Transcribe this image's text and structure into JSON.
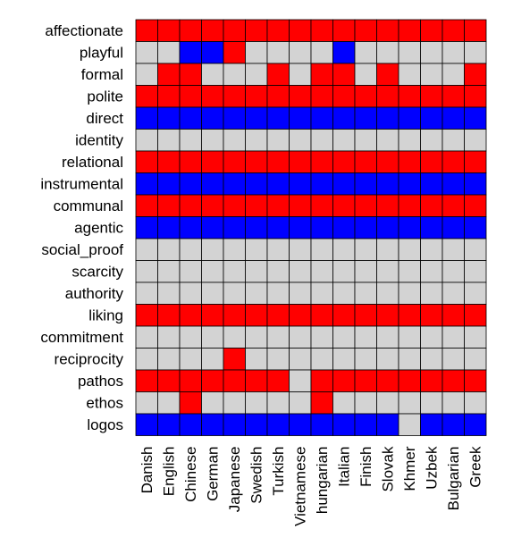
{
  "chart_data": {
    "type": "heatmap",
    "rows": [
      "affectionate",
      "playful",
      "formal",
      "polite",
      "direct",
      "identity",
      "relational",
      "instrumental",
      "communal",
      "agentic",
      "social_proof",
      "scarcity",
      "authority",
      "liking",
      "commitment",
      "reciprocity",
      "pathos",
      "ethos",
      "logos"
    ],
    "columns": [
      "Danish",
      "English",
      "Chinese",
      "German",
      "Japanese",
      "Swedish",
      "Turkish",
      "Vietnamese",
      "hungarian",
      "Italian",
      "Finish",
      "Slovak",
      "Khmer",
      "Uzbek",
      "Bulgarian",
      "Greek"
    ],
    "values": [
      [
        "R",
        "R",
        "R",
        "R",
        "R",
        "R",
        "R",
        "R",
        "R",
        "R",
        "R",
        "R",
        "R",
        "R",
        "R",
        "R"
      ],
      [
        "G",
        "G",
        "B",
        "B",
        "R",
        "G",
        "G",
        "G",
        "G",
        "B",
        "G",
        "G",
        "G",
        "G",
        "G",
        "G"
      ],
      [
        "G",
        "R",
        "R",
        "G",
        "G",
        "G",
        "R",
        "G",
        "R",
        "R",
        "G",
        "R",
        "G",
        "G",
        "G",
        "R"
      ],
      [
        "R",
        "R",
        "R",
        "R",
        "R",
        "R",
        "R",
        "R",
        "R",
        "R",
        "R",
        "R",
        "R",
        "R",
        "R",
        "R"
      ],
      [
        "B",
        "B",
        "B",
        "B",
        "B",
        "B",
        "B",
        "B",
        "B",
        "B",
        "B",
        "B",
        "B",
        "B",
        "B",
        "B"
      ],
      [
        "G",
        "G",
        "G",
        "G",
        "G",
        "G",
        "G",
        "G",
        "G",
        "G",
        "G",
        "G",
        "G",
        "G",
        "G",
        "G"
      ],
      [
        "R",
        "R",
        "R",
        "R",
        "R",
        "R",
        "R",
        "R",
        "R",
        "R",
        "R",
        "R",
        "R",
        "R",
        "R",
        "R"
      ],
      [
        "B",
        "B",
        "B",
        "B",
        "B",
        "B",
        "B",
        "B",
        "B",
        "B",
        "B",
        "B",
        "B",
        "B",
        "B",
        "B"
      ],
      [
        "R",
        "R",
        "R",
        "R",
        "R",
        "R",
        "R",
        "R",
        "R",
        "R",
        "R",
        "R",
        "R",
        "R",
        "R",
        "R"
      ],
      [
        "B",
        "B",
        "B",
        "B",
        "B",
        "B",
        "B",
        "B",
        "B",
        "B",
        "B",
        "B",
        "B",
        "B",
        "B",
        "B"
      ],
      [
        "G",
        "G",
        "G",
        "G",
        "G",
        "G",
        "G",
        "G",
        "G",
        "G",
        "G",
        "G",
        "G",
        "G",
        "G",
        "G"
      ],
      [
        "G",
        "G",
        "G",
        "G",
        "G",
        "G",
        "G",
        "G",
        "G",
        "G",
        "G",
        "G",
        "G",
        "G",
        "G",
        "G"
      ],
      [
        "G",
        "G",
        "G",
        "G",
        "G",
        "G",
        "G",
        "G",
        "G",
        "G",
        "G",
        "G",
        "G",
        "G",
        "G",
        "G"
      ],
      [
        "R",
        "R",
        "R",
        "R",
        "R",
        "R",
        "R",
        "R",
        "R",
        "R",
        "R",
        "R",
        "R",
        "R",
        "R",
        "R"
      ],
      [
        "G",
        "G",
        "G",
        "G",
        "G",
        "G",
        "G",
        "G",
        "G",
        "G",
        "G",
        "G",
        "G",
        "G",
        "G",
        "G"
      ],
      [
        "G",
        "G",
        "G",
        "G",
        "R",
        "G",
        "G",
        "G",
        "G",
        "G",
        "G",
        "G",
        "G",
        "G",
        "G",
        "G"
      ],
      [
        "R",
        "R",
        "R",
        "R",
        "R",
        "R",
        "R",
        "G",
        "R",
        "R",
        "R",
        "R",
        "R",
        "R",
        "R",
        "R"
      ],
      [
        "G",
        "G",
        "R",
        "G",
        "G",
        "G",
        "G",
        "G",
        "R",
        "G",
        "G",
        "G",
        "G",
        "G",
        "G",
        "G"
      ],
      [
        "B",
        "B",
        "B",
        "B",
        "B",
        "B",
        "B",
        "B",
        "B",
        "B",
        "B",
        "B",
        "G",
        "B",
        "B",
        "B"
      ]
    ],
    "colors": {
      "R": "#ff0000",
      "B": "#0000ff",
      "G": "#d3d3d3"
    },
    "grid": true
  }
}
